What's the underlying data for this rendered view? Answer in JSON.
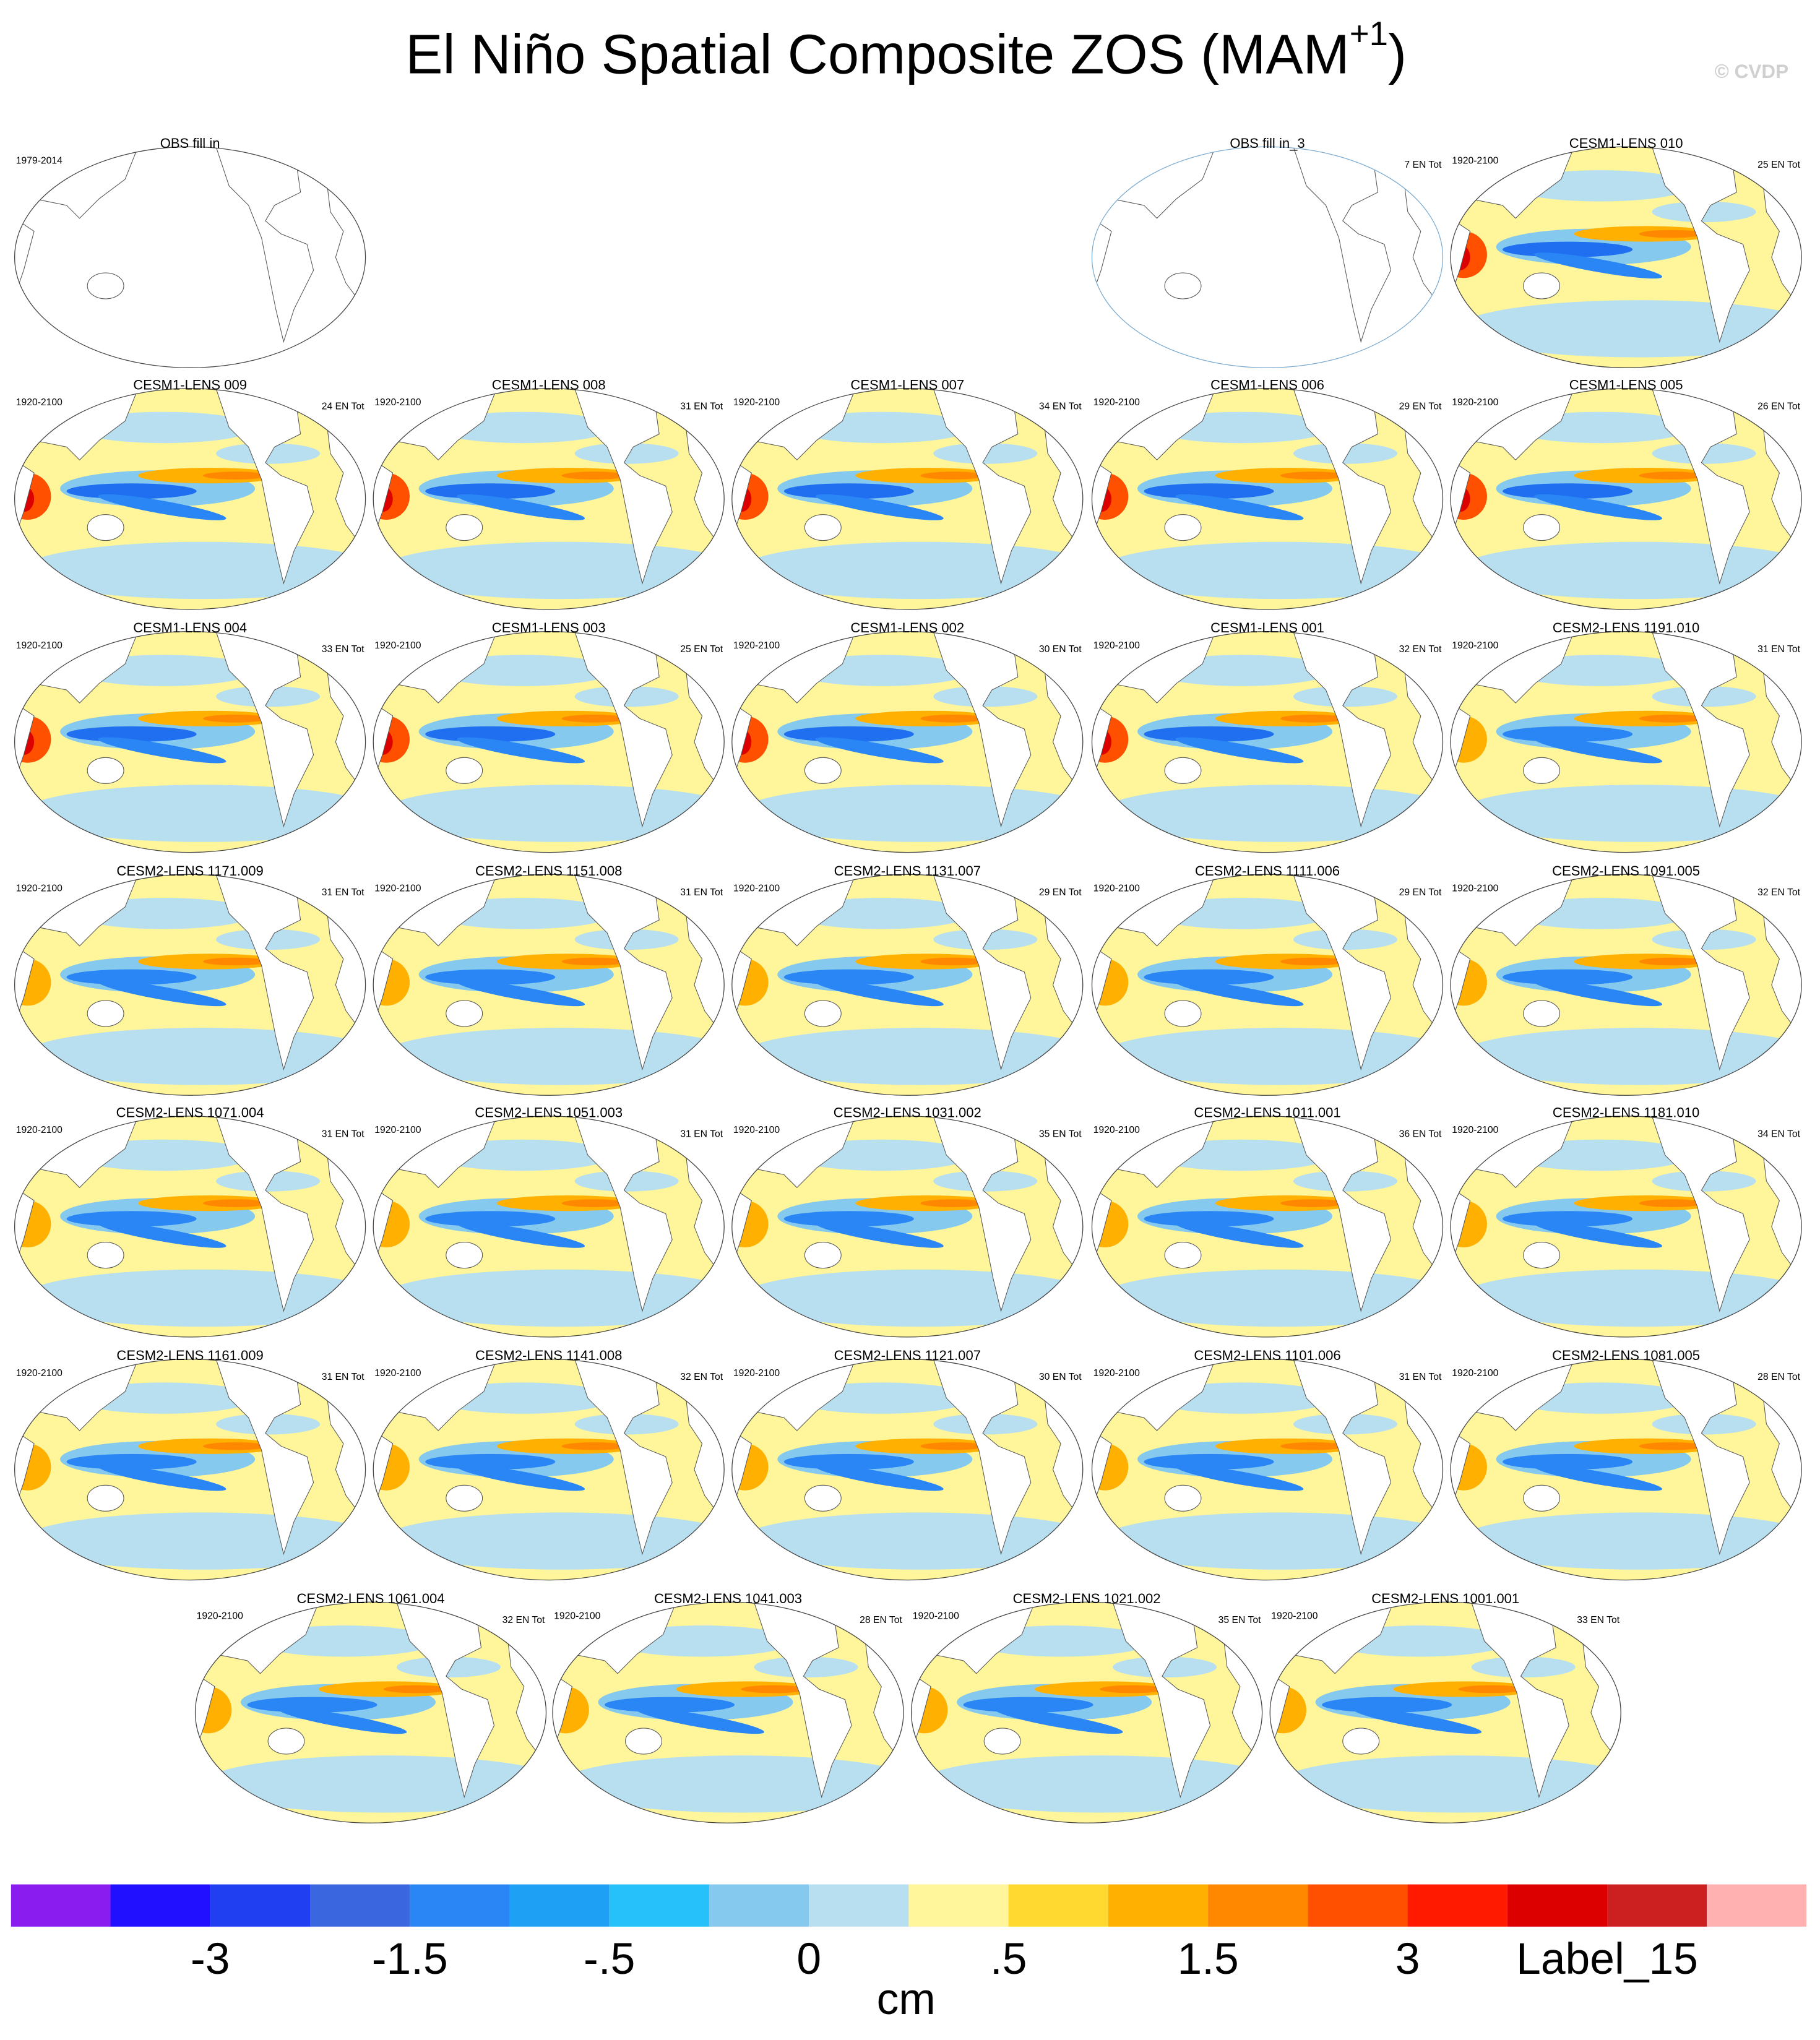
{
  "header": {
    "title_main": "El Niño Spatial Composite ZOS (MAM",
    "title_sup": "+1",
    "title_end": ")",
    "credit": "© CVDP"
  },
  "panels": [
    {
      "title": "OBS fill in",
      "left": "1979-2014"
    },
    {
      "title": "OBS fill in_3",
      "right": "7 EN Tot"
    },
    {
      "title": "CESM1-LENS 010",
      "left": "1920-2100",
      "right": "25 EN Tot"
    },
    {
      "title": "CESM1-LENS 009",
      "left": "1920-2100",
      "right": "24 EN Tot"
    },
    {
      "title": "CESM1-LENS 008",
      "left": "1920-2100",
      "right": "31 EN Tot"
    },
    {
      "title": "CESM1-LENS 007",
      "left": "1920-2100",
      "right": "34 EN Tot"
    },
    {
      "title": "CESM1-LENS 006",
      "left": "1920-2100",
      "right": "29 EN Tot"
    },
    {
      "title": "CESM1-LENS 005",
      "left": "1920-2100",
      "right": "26 EN Tot"
    },
    {
      "title": "CESM1-LENS 004",
      "left": "1920-2100",
      "right": "33 EN Tot"
    },
    {
      "title": "CESM1-LENS 003",
      "left": "1920-2100",
      "right": "25 EN Tot"
    },
    {
      "title": "CESM1-LENS 002",
      "left": "1920-2100",
      "right": "30 EN Tot"
    },
    {
      "title": "CESM1-LENS 001",
      "left": "1920-2100",
      "right": "32 EN Tot"
    },
    {
      "title": "CESM2-LENS 1191.010",
      "left": "1920-2100",
      "right": "31 EN Tot"
    },
    {
      "title": "CESM2-LENS 1171.009",
      "left": "1920-2100",
      "right": "31 EN Tot"
    },
    {
      "title": "CESM2-LENS 1151.008",
      "left": "1920-2100",
      "right": "31 EN Tot"
    },
    {
      "title": "CESM2-LENS 1131.007",
      "left": "1920-2100",
      "right": "29 EN Tot"
    },
    {
      "title": "CESM2-LENS 1111.006",
      "left": "1920-2100",
      "right": "29 EN Tot"
    },
    {
      "title": "CESM2-LENS 1091.005",
      "left": "1920-2100",
      "right": "32 EN Tot"
    },
    {
      "title": "CESM2-LENS 1071.004",
      "left": "1920-2100",
      "right": "31 EN Tot"
    },
    {
      "title": "CESM2-LENS 1051.003",
      "left": "1920-2100",
      "right": "31 EN Tot"
    },
    {
      "title": "CESM2-LENS 1031.002",
      "left": "1920-2100",
      "right": "35 EN Tot"
    },
    {
      "title": "CESM2-LENS 1011.001",
      "left": "1920-2100",
      "right": "36 EN Tot"
    },
    {
      "title": "CESM2-LENS 1181.010",
      "left": "1920-2100",
      "right": "34 EN Tot"
    },
    {
      "title": "CESM2-LENS 1161.009",
      "left": "1920-2100",
      "right": "31 EN Tot"
    },
    {
      "title": "CESM2-LENS 1141.008",
      "left": "1920-2100",
      "right": "32 EN Tot"
    },
    {
      "title": "CESM2-LENS 1121.007",
      "left": "1920-2100",
      "right": "30 EN Tot"
    },
    {
      "title": "CESM2-LENS 1101.006",
      "left": "1920-2100",
      "right": "31 EN Tot"
    },
    {
      "title": "CESM2-LENS 1081.005",
      "left": "1920-2100",
      "right": "28 EN Tot"
    },
    {
      "title": "CESM2-LENS 1061.004",
      "left": "1920-2100",
      "right": "32 EN Tot"
    },
    {
      "title": "CESM2-LENS 1041.003",
      "left": "1920-2100",
      "right": "28 EN Tot"
    },
    {
      "title": "CESM2-LENS 1021.002",
      "left": "1920-2100",
      "right": "35 EN Tot"
    },
    {
      "title": "CESM2-LENS 1001.001",
      "left": "1920-2100",
      "right": "33 EN Tot"
    }
  ],
  "colorbar": {
    "colors": [
      "#8a1cf0",
      "#2010ff",
      "#1f3ff0",
      "#3a66e0",
      "#2a85f5",
      "#1ea0f5",
      "#26c0fa",
      "#85c9ee",
      "#b7dff0",
      "#fff59a",
      "#ffd830",
      "#ffb000",
      "#ff8800",
      "#ff5000",
      "#ff1a00",
      "#dd0000",
      "#cc2020",
      "#ffb0b0"
    ],
    "labels": [
      "-3",
      "-1.5",
      "-.5",
      "0",
      ".5",
      "1.5",
      "3",
      "Label_15"
    ],
    "unit": "cm"
  }
}
